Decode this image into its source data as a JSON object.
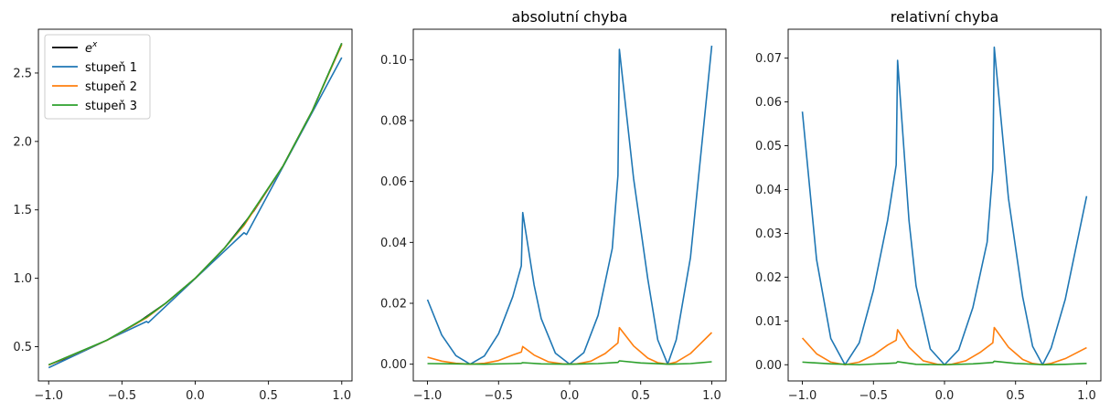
{
  "colors": {
    "exp": "#000000",
    "deg1": "#1f77b4",
    "deg2": "#ff7f0e",
    "deg3": "#2ca02c"
  },
  "chart_data": [
    {
      "type": "line",
      "title": "",
      "xlabel": "",
      "ylabel": "",
      "xlim": [
        -1.07,
        1.07
      ],
      "ylim": [
        0.25,
        2.82
      ],
      "xticks": [
        -1.0,
        -0.5,
        0.0,
        0.5,
        1.0
      ],
      "xtick_labels": [
        "−1.0",
        "−0.5",
        "0.0",
        "0.5",
        "1.0"
      ],
      "yticks": [
        0.5,
        1.0,
        1.5,
        2.0,
        2.5
      ],
      "ytick_labels": [
        "0.5",
        "1.0",
        "1.5",
        "2.0",
        "2.5"
      ],
      "legend": {
        "placement": "top-left",
        "entries": [
          "e^x",
          "stupeň 1",
          "stupeň 2",
          "stupeň 3"
        ]
      },
      "series": [
        {
          "name": "e^x",
          "color": "exp",
          "x": [
            -1.0,
            -0.8,
            -0.6,
            -0.4,
            -0.2,
            0.0,
            0.2,
            0.4,
            0.6,
            0.8,
            1.0
          ],
          "y": [
            0.368,
            0.449,
            0.549,
            0.67,
            0.819,
            1.0,
            1.221,
            1.492,
            1.822,
            2.226,
            2.718
          ]
        },
        {
          "name": "stupeň 1",
          "color": "deg1",
          "x": [
            -1.0,
            -0.333,
            -0.32,
            0.333,
            0.35,
            1.0
          ],
          "y": [
            0.347,
            0.684,
            0.676,
            1.333,
            1.32,
            2.613
          ]
        },
        {
          "name": "stupeň 2",
          "color": "deg2",
          "x": [
            -1.0,
            -0.6,
            -0.333,
            -0.2,
            0.0,
            0.2,
            0.333,
            0.6,
            0.8,
            1.0
          ],
          "y": [
            0.366,
            0.548,
            0.711,
            0.818,
            1.0,
            1.221,
            1.386,
            1.822,
            2.226,
            2.708
          ]
        },
        {
          "name": "stupeň 3",
          "color": "deg3",
          "x": [
            -1.0,
            -0.6,
            -0.333,
            -0.2,
            0.0,
            0.2,
            0.333,
            0.6,
            0.8,
            1.0
          ],
          "y": [
            0.368,
            0.549,
            0.716,
            0.819,
            1.0,
            1.221,
            1.395,
            1.822,
            2.226,
            2.717
          ]
        }
      ]
    },
    {
      "type": "line",
      "title": "absolutní chyba",
      "xlabel": "",
      "ylabel": "",
      "xlim": [
        -1.1,
        1.1
      ],
      "ylim": [
        -0.0055,
        0.11
      ],
      "xticks": [
        -1.0,
        -0.5,
        0.0,
        0.5,
        1.0
      ],
      "xtick_labels": [
        "−1.0",
        "−0.5",
        "0.0",
        "0.5",
        "1.0"
      ],
      "yticks": [
        0.0,
        0.02,
        0.04,
        0.06,
        0.08,
        0.1
      ],
      "ytick_labels": [
        "0.00",
        "0.02",
        "0.04",
        "0.06",
        "0.08",
        "0.10"
      ],
      "series": [
        {
          "name": "",
          "color": "deg1",
          "x": [
            -1.0,
            -0.9,
            -0.8,
            -0.7,
            -0.6,
            -0.5,
            -0.4,
            -0.34,
            -0.33,
            -0.25,
            -0.2,
            -0.1,
            0.0,
            0.1,
            0.2,
            0.3,
            0.34,
            0.35,
            0.45,
            0.55,
            0.62,
            0.69,
            0.75,
            0.85,
            1.0
          ],
          "y": [
            0.0212,
            0.0096,
            0.0028,
            0.0,
            0.0027,
            0.01,
            0.0222,
            0.0323,
            0.0498,
            0.026,
            0.015,
            0.0036,
            0.0,
            0.0038,
            0.016,
            0.038,
            0.062,
            0.1034,
            0.061,
            0.028,
            0.008,
            0.0,
            0.008,
            0.035,
            0.1046
          ]
        },
        {
          "name": "",
          "color": "deg2",
          "x": [
            -1.0,
            -0.9,
            -0.8,
            -0.7,
            -0.6,
            -0.5,
            -0.4,
            -0.34,
            -0.33,
            -0.25,
            -0.15,
            -0.05,
            0.0,
            0.05,
            0.15,
            0.25,
            0.34,
            0.35,
            0.45,
            0.55,
            0.62,
            0.69,
            0.75,
            0.85,
            1.0
          ],
          "y": [
            0.0023,
            0.001,
            0.0003,
            0.0,
            0.0003,
            0.0012,
            0.003,
            0.004,
            0.0058,
            0.003,
            0.0008,
            0.0001,
            0.0,
            0.0001,
            0.001,
            0.0035,
            0.007,
            0.012,
            0.006,
            0.002,
            0.0005,
            0.0,
            0.0007,
            0.0035,
            0.0104
          ]
        },
        {
          "name": "",
          "color": "deg3",
          "x": [
            -1.0,
            -0.8,
            -0.6,
            -0.4,
            -0.34,
            -0.33,
            -0.2,
            0.0,
            0.2,
            0.34,
            0.35,
            0.5,
            0.7,
            0.85,
            1.0
          ],
          "y": [
            0.0002,
            0.0001,
            0.0,
            0.0002,
            0.0003,
            0.0005,
            0.0001,
            0.0,
            0.0002,
            0.0006,
            0.0011,
            0.0004,
            0.0,
            0.0002,
            0.0008
          ]
        }
      ]
    },
    {
      "type": "line",
      "title": "relativní chyba",
      "xlabel": "",
      "ylabel": "",
      "xlim": [
        -1.1,
        1.1
      ],
      "ylim": [
        -0.0037,
        0.0766
      ],
      "xticks": [
        -1.0,
        -0.5,
        0.0,
        0.5,
        1.0
      ],
      "xtick_labels": [
        "−1.0",
        "−0.5",
        "0.0",
        "0.5",
        "1.0"
      ],
      "yticks": [
        0.0,
        0.01,
        0.02,
        0.03,
        0.04,
        0.05,
        0.06,
        0.07
      ],
      "ytick_labels": [
        "0.00",
        "0.01",
        "0.02",
        "0.03",
        "0.04",
        "0.05",
        "0.06",
        "0.07"
      ],
      "series": [
        {
          "name": "",
          "color": "deg1",
          "x": [
            -1.0,
            -0.9,
            -0.8,
            -0.7,
            -0.6,
            -0.5,
            -0.4,
            -0.34,
            -0.33,
            -0.25,
            -0.2,
            -0.1,
            0.0,
            0.1,
            0.2,
            0.3,
            0.34,
            0.35,
            0.45,
            0.55,
            0.62,
            0.69,
            0.75,
            0.85,
            1.0
          ],
          "y": [
            0.0578,
            0.024,
            0.006,
            0.0,
            0.005,
            0.017,
            0.033,
            0.0456,
            0.0695,
            0.033,
            0.018,
            0.0036,
            0.0,
            0.0034,
            0.0131,
            0.028,
            0.0446,
            0.0725,
            0.038,
            0.0155,
            0.0042,
            0.0,
            0.0038,
            0.015,
            0.0385
          ]
        },
        {
          "name": "",
          "color": "deg2",
          "x": [
            -1.0,
            -0.9,
            -0.8,
            -0.7,
            -0.6,
            -0.5,
            -0.4,
            -0.34,
            -0.33,
            -0.25,
            -0.15,
            -0.05,
            0.0,
            0.05,
            0.15,
            0.25,
            0.34,
            0.35,
            0.45,
            0.55,
            0.62,
            0.69,
            0.75,
            0.85,
            1.0
          ],
          "y": [
            0.0061,
            0.0025,
            0.0006,
            0.0,
            0.0006,
            0.0022,
            0.0045,
            0.0056,
            0.008,
            0.004,
            0.0009,
            0.0001,
            0.0,
            0.0001,
            0.0009,
            0.0028,
            0.005,
            0.0085,
            0.004,
            0.0012,
            0.0003,
            0.0,
            0.0003,
            0.0014,
            0.0039
          ]
        },
        {
          "name": "",
          "color": "deg3",
          "x": [
            -1.0,
            -0.8,
            -0.6,
            -0.4,
            -0.34,
            -0.33,
            -0.2,
            0.0,
            0.2,
            0.34,
            0.35,
            0.5,
            0.7,
            0.85,
            1.0
          ],
          "y": [
            0.0006,
            0.0002,
            0.0,
            0.0003,
            0.0004,
            0.0007,
            0.0001,
            0.0,
            0.0002,
            0.0005,
            0.0008,
            0.0003,
            0.0,
            0.0001,
            0.0003
          ]
        }
      ]
    }
  ]
}
